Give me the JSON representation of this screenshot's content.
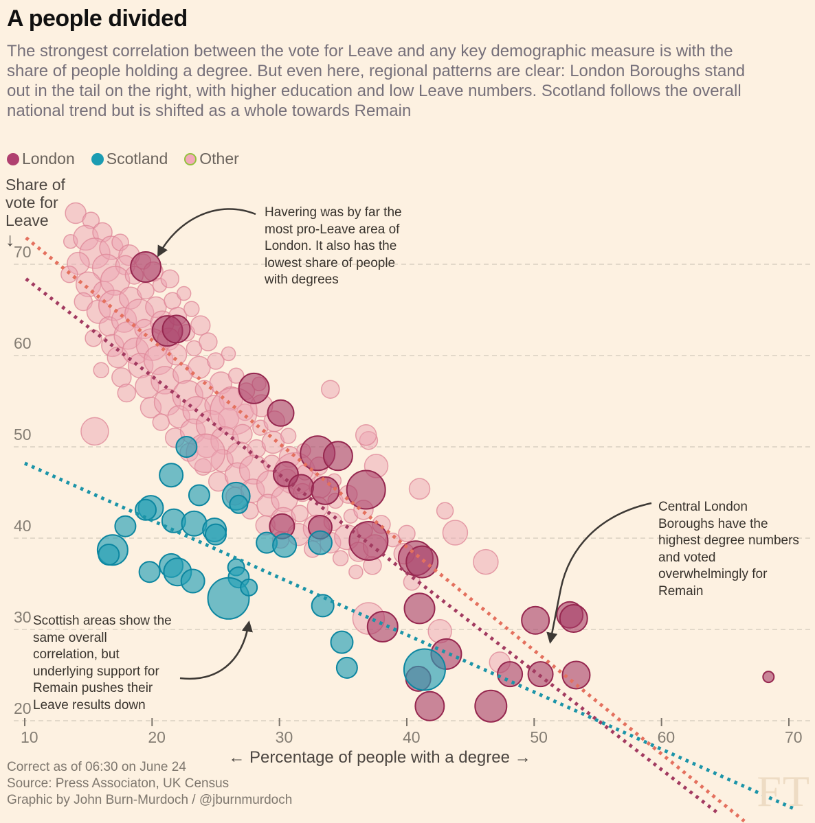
{
  "title": "A people divided",
  "subtitle": "The strongest correlation between the vote for Leave and any key demographic measure is with the\nshare of people holding a degree. But even here, regional patterns are clear: London Boroughs stand\nout in the tail on the right, with higher education and low Leave numbers. Scotland follows the overall\nnational trend but is shifted as a whole towards Remain",
  "legend": [
    {
      "label": "London",
      "swatch": "#b04070",
      "stroke": "#b04070"
    },
    {
      "label": "Scotland",
      "swatch": "#1b9cb2",
      "stroke": "#1b9cb2"
    },
    {
      "label": "Other",
      "swatch": "#f3a8ba",
      "stroke": "#94c13e"
    }
  ],
  "y_axis": {
    "title": "Share of\nvote for\nLeave",
    "arrow": "↓",
    "ticks": [
      70,
      60,
      50,
      40,
      30,
      20
    ]
  },
  "x_axis": {
    "label": "← Percentage of people with a degree →",
    "ticks": [
      10,
      20,
      30,
      40,
      50,
      60,
      70
    ]
  },
  "annotations": {
    "havering": {
      "text": "Havering was by far the\nmost pro-Leave area of\nLondon. It also has the\nlowest share of people\nwith degrees"
    },
    "central_london": {
      "text": "Central London\nBoroughs have the\nhighest degree numbers\nand voted\noverwhelmingly for\nRemain"
    },
    "scotland": {
      "text": "Scottish areas show the\nsame overall\ncorrelation, but\nunderlying support for\nRemain pushes their\nLeave results down"
    }
  },
  "footer": {
    "lines": "Correct as of 06:30 on June 24\nSource: Press Associaton, UK Census\nGraphic by John Burn-Murdoch / @jburnmurdoch"
  },
  "watermark": "FT",
  "colors": {
    "background": "#fdf1e1",
    "grid": "#d9d0c1",
    "tick": "#7c756c",
    "arrow": "#3d3935",
    "trend_other": "#e4705e",
    "trend_london": "#a23a60",
    "trend_scotland": "#1b94a8"
  },
  "chart_data": {
    "type": "scatter",
    "title": "A people divided",
    "xlabel": "Percentage of people with a degree",
    "ylabel": "Share of vote for Leave",
    "x_range": [
      10,
      70
    ],
    "y_range": [
      20,
      70
    ],
    "grid": "horizontal-dashed",
    "point_format": "[degree_pct, leave_pct, bubble_radius_px]",
    "series": [
      {
        "name": "Other",
        "fill": "#eba6b3",
        "fill_opacity": 0.5,
        "stroke": "#dd8496",
        "stroke_opacity": 0.75,
        "stroke_width": 1.5,
        "points": [
          [
            14.0,
            75.6,
            15
          ],
          [
            15.2,
            74.8,
            12
          ],
          [
            13.6,
            72.5,
            10
          ],
          [
            14.8,
            72.9,
            18
          ],
          [
            16.1,
            73.5,
            14
          ],
          [
            15.5,
            71.2,
            22
          ],
          [
            14.2,
            70.1,
            16
          ],
          [
            13.5,
            68.9,
            12
          ],
          [
            16.8,
            71.8,
            17
          ],
          [
            17.5,
            72.4,
            12
          ],
          [
            18.2,
            71.0,
            15
          ],
          [
            16.4,
            69.6,
            20
          ],
          [
            17.9,
            69.9,
            14
          ],
          [
            15.0,
            67.8,
            18
          ],
          [
            16.2,
            67.0,
            15
          ],
          [
            17.1,
            68.2,
            21
          ],
          [
            18.6,
            68.8,
            13
          ],
          [
            19.3,
            70.3,
            11
          ],
          [
            20.1,
            69.2,
            14
          ],
          [
            14.6,
            65.9,
            13
          ],
          [
            15.8,
            64.8,
            17
          ],
          [
            17.0,
            65.5,
            22
          ],
          [
            18.3,
            66.3,
            16
          ],
          [
            19.5,
            67.1,
            12
          ],
          [
            20.6,
            67.7,
            10
          ],
          [
            21.4,
            68.4,
            13
          ],
          [
            16.6,
            63.2,
            14
          ],
          [
            17.8,
            63.9,
            18
          ],
          [
            19.0,
            64.6,
            21
          ],
          [
            20.3,
            65.3,
            15
          ],
          [
            21.6,
            66.0,
            12
          ],
          [
            22.5,
            66.8,
            10
          ],
          [
            15.4,
            61.9,
            12
          ],
          [
            16.9,
            61.1,
            16
          ],
          [
            18.1,
            62.2,
            20
          ],
          [
            19.4,
            62.9,
            14
          ],
          [
            20.8,
            63.6,
            17
          ],
          [
            22.0,
            64.3,
            13
          ],
          [
            23.1,
            65.1,
            11
          ],
          [
            17.3,
            59.8,
            15
          ],
          [
            18.7,
            60.5,
            19
          ],
          [
            20.0,
            61.2,
            23
          ],
          [
            21.3,
            61.8,
            16
          ],
          [
            22.7,
            62.5,
            12
          ],
          [
            23.8,
            63.3,
            14
          ],
          [
            16.0,
            58.4,
            11
          ],
          [
            17.6,
            57.6,
            14
          ],
          [
            19.1,
            58.9,
            18
          ],
          [
            20.5,
            59.5,
            21
          ],
          [
            21.9,
            60.1,
            15
          ],
          [
            23.3,
            60.8,
            11
          ],
          [
            24.4,
            61.5,
            13
          ],
          [
            18.0,
            55.9,
            13
          ],
          [
            19.6,
            56.6,
            17
          ],
          [
            21.0,
            57.3,
            20
          ],
          [
            22.4,
            58.0,
            14
          ],
          [
            23.7,
            58.7,
            16
          ],
          [
            25.0,
            59.4,
            12
          ],
          [
            26.0,
            60.2,
            10
          ],
          [
            19.9,
            54.3,
            15
          ],
          [
            21.2,
            54.9,
            19
          ],
          [
            22.8,
            55.6,
            22
          ],
          [
            24.1,
            56.3,
            13
          ],
          [
            25.4,
            57.0,
            16
          ],
          [
            26.6,
            57.8,
            11
          ],
          [
            20.7,
            52.7,
            12
          ],
          [
            22.1,
            53.3,
            16
          ],
          [
            23.5,
            54.0,
            20
          ],
          [
            24.9,
            54.6,
            14
          ],
          [
            26.2,
            55.3,
            17
          ],
          [
            27.4,
            56.1,
            12
          ],
          [
            28.4,
            56.9,
            10
          ],
          [
            21.8,
            51.0,
            14
          ],
          [
            23.2,
            51.7,
            18
          ],
          [
            24.6,
            52.4,
            21
          ],
          [
            26.0,
            53.1,
            15
          ],
          [
            27.3,
            53.8,
            12
          ],
          [
            28.6,
            54.5,
            16
          ],
          [
            26.4,
            53.9,
            34
          ],
          [
            22.9,
            49.4,
            13
          ],
          [
            24.3,
            50.1,
            17
          ],
          [
            25.7,
            50.7,
            20
          ],
          [
            27.1,
            51.4,
            14
          ],
          [
            28.5,
            52.1,
            11
          ],
          [
            29.6,
            52.8,
            15
          ],
          [
            24.0,
            47.8,
            12
          ],
          [
            25.5,
            48.5,
            16
          ],
          [
            26.9,
            49.1,
            19
          ],
          [
            28.2,
            49.8,
            13
          ],
          [
            29.5,
            50.5,
            16
          ],
          [
            30.7,
            51.2,
            11
          ],
          [
            24.2,
            49.3,
            28
          ],
          [
            25.2,
            46.2,
            14
          ],
          [
            26.7,
            46.9,
            18
          ],
          [
            28.0,
            47.5,
            21
          ],
          [
            29.4,
            48.2,
            12
          ],
          [
            30.8,
            48.9,
            15
          ],
          [
            31.9,
            49.6,
            10
          ],
          [
            31.2,
            47.1,
            30
          ],
          [
            26.5,
            44.6,
            13
          ],
          [
            27.9,
            45.2,
            17
          ],
          [
            29.3,
            45.9,
            20
          ],
          [
            30.6,
            46.5,
            14
          ],
          [
            32.0,
            47.2,
            11
          ],
          [
            33.1,
            47.9,
            13
          ],
          [
            27.7,
            43.0,
            12
          ],
          [
            29.1,
            43.6,
            16
          ],
          [
            30.4,
            44.3,
            19
          ],
          [
            31.8,
            45.0,
            13
          ],
          [
            33.2,
            45.6,
            16
          ],
          [
            34.3,
            46.3,
            10
          ],
          [
            28.9,
            41.4,
            14
          ],
          [
            30.3,
            42.0,
            18
          ],
          [
            31.6,
            42.7,
            12
          ],
          [
            33.0,
            43.4,
            15
          ],
          [
            34.4,
            44.1,
            11
          ],
          [
            35.4,
            44.8,
            13
          ],
          [
            30.1,
            39.8,
            12
          ],
          [
            31.5,
            40.4,
            16
          ],
          [
            32.9,
            41.1,
            19
          ],
          [
            34.2,
            41.8,
            13
          ],
          [
            35.6,
            42.4,
            10
          ],
          [
            36.6,
            43.1,
            14
          ],
          [
            32.6,
            38.8,
            12
          ],
          [
            34.0,
            39.5,
            15
          ],
          [
            35.3,
            40.1,
            18
          ],
          [
            36.7,
            40.8,
            11
          ],
          [
            38.0,
            41.5,
            13
          ],
          [
            34.8,
            37.8,
            11
          ],
          [
            36.2,
            38.5,
            14
          ],
          [
            37.5,
            39.1,
            17
          ],
          [
            38.9,
            39.8,
            10
          ],
          [
            40.0,
            40.5,
            12
          ],
          [
            36.0,
            36.3,
            10
          ],
          [
            37.3,
            37.0,
            13
          ],
          [
            39.8,
            38.3,
            15
          ],
          [
            41.0,
            45.4,
            15
          ],
          [
            37.6,
            47.9,
            17
          ],
          [
            37.0,
            50.7,
            13
          ],
          [
            34.0,
            56.3,
            13
          ],
          [
            36.8,
            51.3,
            15
          ],
          [
            43.8,
            40.6,
            18
          ],
          [
            46.2,
            37.4,
            18
          ],
          [
            37.0,
            31.2,
            23
          ],
          [
            42.6,
            29.8,
            17
          ],
          [
            47.3,
            26.4,
            15
          ],
          [
            40.4,
            35.2,
            12
          ],
          [
            43.0,
            43.0,
            12
          ],
          [
            15.5,
            51.7,
            20
          ]
        ]
      },
      {
        "name": "London",
        "fill": "#a63d68",
        "fill_opacity": 0.6,
        "stroke": "#96274f",
        "stroke_opacity": 1,
        "stroke_width": 2,
        "points": [
          [
            19.5,
            69.7,
            22
          ],
          [
            21.2,
            62.7,
            22
          ],
          [
            21.9,
            62.9,
            20
          ],
          [
            28.0,
            56.4,
            22
          ],
          [
            30.1,
            53.7,
            19
          ],
          [
            33.0,
            49.3,
            25
          ],
          [
            34.6,
            49.0,
            21
          ],
          [
            30.5,
            47.0,
            18
          ],
          [
            31.7,
            45.6,
            18
          ],
          [
            33.6,
            45.2,
            20
          ],
          [
            36.8,
            45.3,
            28
          ],
          [
            30.2,
            41.3,
            18
          ],
          [
            33.2,
            41.2,
            17
          ],
          [
            37.0,
            39.7,
            28
          ],
          [
            40.7,
            37.8,
            25
          ],
          [
            41.2,
            37.4,
            23
          ],
          [
            41.0,
            32.3,
            22
          ],
          [
            38.1,
            30.3,
            22
          ],
          [
            43.1,
            27.3,
            22
          ],
          [
            40.9,
            24.6,
            18
          ],
          [
            41.8,
            21.6,
            21
          ],
          [
            46.6,
            21.6,
            23
          ],
          [
            48.1,
            25.1,
            18
          ],
          [
            50.5,
            25.1,
            18
          ],
          [
            53.3,
            25.0,
            20
          ],
          [
            50.1,
            31.0,
            20
          ],
          [
            52.8,
            31.6,
            19
          ],
          [
            53.1,
            31.2,
            20
          ],
          [
            68.4,
            24.8,
            8
          ]
        ]
      },
      {
        "name": "Scotland",
        "fill": "#26a0b5",
        "fill_opacity": 0.65,
        "stroke": "#0c86a0",
        "stroke_opacity": 1,
        "stroke_width": 2,
        "points": [
          [
            22.7,
            50.0,
            15
          ],
          [
            21.5,
            46.9,
            17
          ],
          [
            23.7,
            44.7,
            15
          ],
          [
            26.6,
            44.6,
            20
          ],
          [
            26.8,
            43.7,
            13
          ],
          [
            19.9,
            43.3,
            18
          ],
          [
            19.5,
            43.1,
            15
          ],
          [
            21.7,
            41.9,
            17
          ],
          [
            23.3,
            41.6,
            18
          ],
          [
            24.9,
            40.9,
            17
          ],
          [
            25.0,
            40.4,
            15
          ],
          [
            17.9,
            41.3,
            15
          ],
          [
            16.9,
            38.7,
            22
          ],
          [
            16.6,
            38.2,
            15
          ],
          [
            19.8,
            36.3,
            15
          ],
          [
            21.5,
            37.0,
            17
          ],
          [
            22.0,
            36.3,
            20
          ],
          [
            23.2,
            35.3,
            17
          ],
          [
            26.6,
            36.8,
            12
          ],
          [
            26.8,
            35.7,
            15
          ],
          [
            26.0,
            33.4,
            30
          ],
          [
            29.0,
            39.5,
            15
          ],
          [
            30.4,
            39.2,
            17
          ],
          [
            33.2,
            39.5,
            17
          ],
          [
            33.4,
            32.6,
            16
          ],
          [
            34.9,
            28.6,
            16
          ],
          [
            35.3,
            25.8,
            15
          ],
          [
            41.4,
            25.6,
            30
          ],
          [
            27.6,
            34.6,
            12
          ]
        ]
      }
    ],
    "trend_lines": [
      {
        "series": "Other",
        "from": [
          10.1,
          72.9
        ],
        "to": [
          66.5,
          9.0
        ],
        "color": "#e4705e"
      },
      {
        "series": "London",
        "from": [
          10.1,
          68.4
        ],
        "to": [
          64.5,
          9.8
        ],
        "color": "#a23a60"
      },
      {
        "series": "Scotland",
        "from": [
          10.0,
          48.2
        ],
        "to": [
          70.5,
          10.3
        ],
        "color": "#1b94a8"
      }
    ],
    "legend_position": "top-left"
  }
}
